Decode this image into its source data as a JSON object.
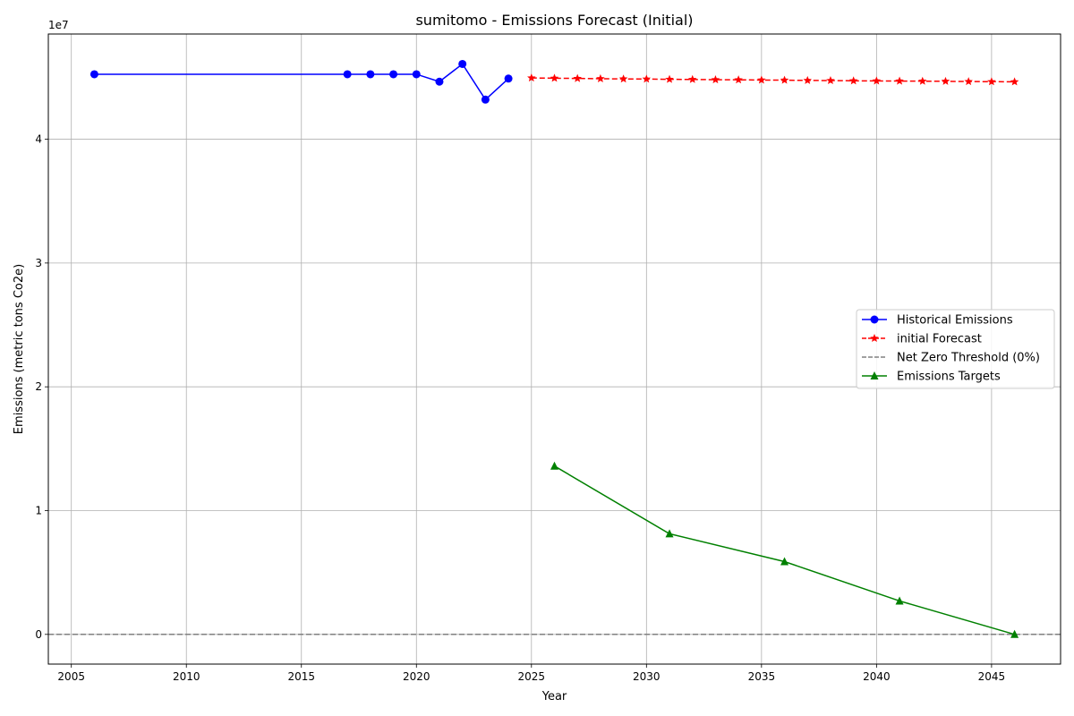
{
  "chart_data": {
    "type": "line",
    "title": "sumitomo - Emissions Forecast (Initial)",
    "xlabel": "Year",
    "ylabel": "Emissions (metric tons Co2e)",
    "y_offset_label": "1e7",
    "xlim": [
      2004,
      2048
    ],
    "ylim": [
      -2400000,
      48500000
    ],
    "x_ticks": [
      2005,
      2010,
      2015,
      2020,
      2025,
      2030,
      2035,
      2040,
      2045
    ],
    "y_ticks": [
      0,
      10000000,
      20000000,
      30000000,
      40000000
    ],
    "y_tick_labels": [
      "0",
      "1",
      "2",
      "3",
      "4"
    ],
    "grid": true,
    "legend_position": "center-right",
    "series": [
      {
        "name": "Historical Emissions",
        "color": "#0000ff",
        "line_style": "solid",
        "marker": "circle",
        "x": [
          2006,
          2017,
          2018,
          2019,
          2020,
          2021,
          2022,
          2023,
          2024
        ],
        "y": [
          45250000,
          45250000,
          45250000,
          45250000,
          45250000,
          44650000,
          46080000,
          43200000,
          44900000
        ]
      },
      {
        "name": "initial Forecast",
        "color": "#ff0000",
        "line_style": "dashed",
        "marker": "star",
        "x": [
          2025,
          2026,
          2027,
          2028,
          2029,
          2030,
          2031,
          2032,
          2033,
          2034,
          2035,
          2036,
          2037,
          2038,
          2039,
          2040,
          2041,
          2042,
          2043,
          2044,
          2045,
          2046
        ],
        "y": [
          44950000,
          44930000,
          44910000,
          44890000,
          44870000,
          44860000,
          44840000,
          44830000,
          44810000,
          44800000,
          44780000,
          44770000,
          44750000,
          44740000,
          44720000,
          44710000,
          44700000,
          44690000,
          44680000,
          44660000,
          44650000,
          44640000
        ]
      },
      {
        "name": "Net Zero Threshold (0%)",
        "color": "#808080",
        "line_style": "dashed",
        "marker": "none",
        "type": "hline",
        "y_value": 0
      },
      {
        "name": "Emissions Targets",
        "color": "#008000",
        "line_style": "solid",
        "marker": "triangle",
        "x": [
          2026,
          2031,
          2036,
          2041,
          2046
        ],
        "y": [
          13600000,
          8130000,
          5880000,
          2700000,
          0
        ]
      }
    ]
  }
}
